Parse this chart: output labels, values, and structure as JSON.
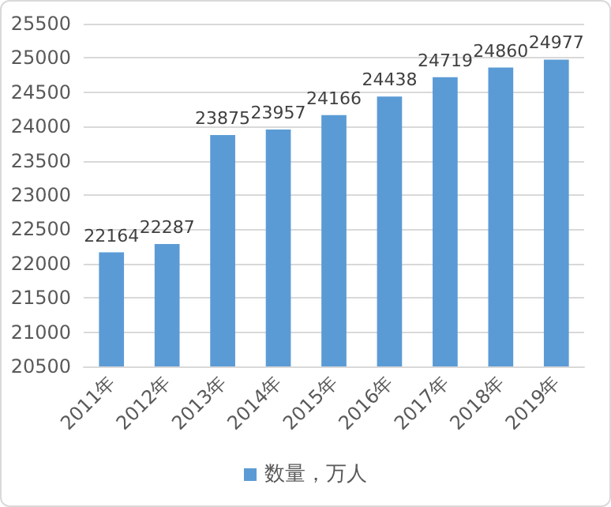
{
  "chart_data": {
    "type": "bar",
    "categories": [
      "2011年",
      "2012年",
      "2013年",
      "2014年",
      "2015年",
      "2016年",
      "2017年",
      "2018年",
      "2019年"
    ],
    "series": [
      {
        "name": "数量，万人",
        "color": "#5b9bd5",
        "values": [
          22164,
          22287,
          23875,
          23957,
          24166,
          24438,
          24719,
          24860,
          24977
        ]
      }
    ],
    "ylim": [
      20500,
      25500
    ],
    "yticks": [
      20500,
      21000,
      21500,
      22000,
      22500,
      23000,
      23500,
      24000,
      24500,
      25000,
      25500
    ],
    "grid": "y",
    "legend": "bottom",
    "data_labels": true
  }
}
